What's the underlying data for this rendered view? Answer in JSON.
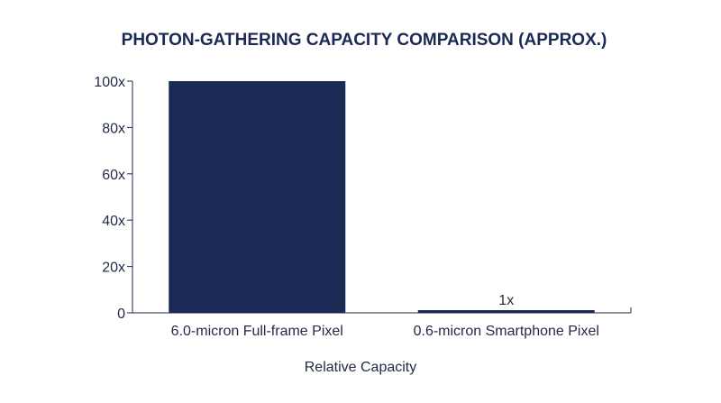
{
  "chart_data": {
    "type": "bar",
    "title": "PHOTON-GATHERING CAPACITY COMPARISON (APPROX.)",
    "xlabel": "Relative Capacity",
    "ylabel": "",
    "categories": [
      "6.0-micron Full-frame Pixel",
      "0.6-micron Smartphone Pixel"
    ],
    "values": [
      100,
      1
    ],
    "data_labels": [
      "",
      "1x"
    ],
    "ylim": [
      0,
      100
    ],
    "yticks": [
      0,
      20,
      40,
      60,
      80,
      100
    ],
    "ytick_labels": [
      "0",
      "20x",
      "40x",
      "60x",
      "80x",
      "100x"
    ],
    "grid": false,
    "legend": "none",
    "bar_color": "#1b2a55"
  }
}
